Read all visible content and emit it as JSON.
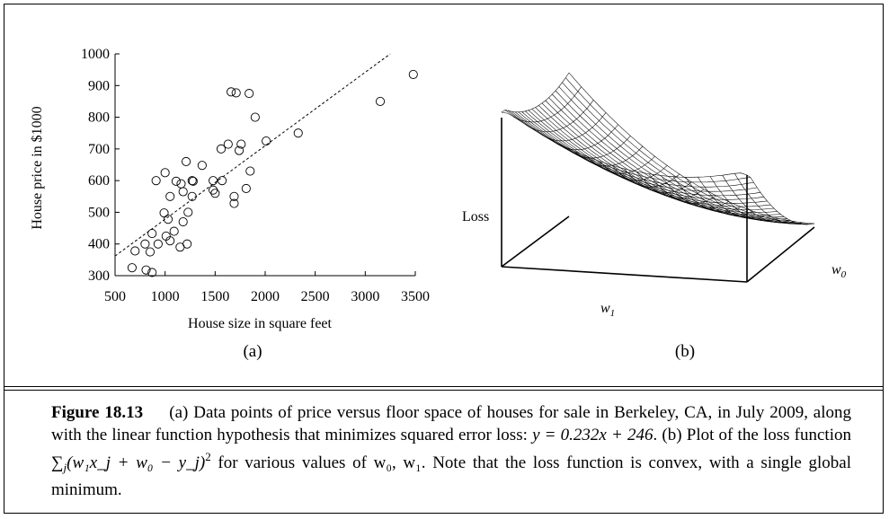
{
  "chart_data": [
    {
      "type": "scatter",
      "panel": "(a)",
      "xlabel": "House size in square feet",
      "ylabel": "House price in $1000",
      "xlim": [
        500,
        3500
      ],
      "ylim": [
        300,
        1000
      ],
      "xticks": [
        500,
        1000,
        1500,
        2000,
        2500,
        3000,
        3500
      ],
      "yticks": [
        300,
        400,
        500,
        600,
        700,
        800,
        900,
        1000
      ],
      "fit_line": {
        "slope": 0.232,
        "intercept": 246,
        "x_range": [
          500,
          3250
        ],
        "style": "dashed"
      },
      "points": [
        {
          "x": 670,
          "y": 325
        },
        {
          "x": 700,
          "y": 378
        },
        {
          "x": 810,
          "y": 318
        },
        {
          "x": 800,
          "y": 400
        },
        {
          "x": 850,
          "y": 375
        },
        {
          "x": 870,
          "y": 433
        },
        {
          "x": 870,
          "y": 310
        },
        {
          "x": 910,
          "y": 600
        },
        {
          "x": 930,
          "y": 400
        },
        {
          "x": 990,
          "y": 498
        },
        {
          "x": 1000,
          "y": 625
        },
        {
          "x": 1010,
          "y": 425
        },
        {
          "x": 1030,
          "y": 478
        },
        {
          "x": 1050,
          "y": 410
        },
        {
          "x": 1050,
          "y": 550
        },
        {
          "x": 1090,
          "y": 440
        },
        {
          "x": 1110,
          "y": 598
        },
        {
          "x": 1150,
          "y": 390
        },
        {
          "x": 1160,
          "y": 590
        },
        {
          "x": 1180,
          "y": 565
        },
        {
          "x": 1180,
          "y": 470
        },
        {
          "x": 1210,
          "y": 660
        },
        {
          "x": 1220,
          "y": 400
        },
        {
          "x": 1230,
          "y": 500
        },
        {
          "x": 1270,
          "y": 600
        },
        {
          "x": 1270,
          "y": 550
        },
        {
          "x": 1280,
          "y": 598
        },
        {
          "x": 1370,
          "y": 648
        },
        {
          "x": 1480,
          "y": 600
        },
        {
          "x": 1480,
          "y": 570
        },
        {
          "x": 1500,
          "y": 560
        },
        {
          "x": 1560,
          "y": 700
        },
        {
          "x": 1570,
          "y": 600
        },
        {
          "x": 1630,
          "y": 715
        },
        {
          "x": 1660,
          "y": 880
        },
        {
          "x": 1690,
          "y": 550
        },
        {
          "x": 1690,
          "y": 528
        },
        {
          "x": 1710,
          "y": 877
        },
        {
          "x": 1740,
          "y": 695
        },
        {
          "x": 1760,
          "y": 715
        },
        {
          "x": 1810,
          "y": 575
        },
        {
          "x": 1840,
          "y": 875
        },
        {
          "x": 1850,
          "y": 630
        },
        {
          "x": 1900,
          "y": 800
        },
        {
          "x": 2010,
          "y": 725
        },
        {
          "x": 2330,
          "y": 750
        },
        {
          "x": 3150,
          "y": 850
        },
        {
          "x": 3480,
          "y": 935
        }
      ]
    },
    {
      "type": "surface",
      "panel": "(b)",
      "zlabel": "Loss",
      "axis1_label": "w",
      "axis1_sub": "1",
      "axis2_label": "w",
      "axis2_sub": "0"
    }
  ],
  "caption": {
    "label": "Figure 18.13",
    "line1_rest": "(a) Data points of price versus floor space of houses for sale in Berkeley,",
    "line2": "CA, in July 2009, along with the linear function hypothesis that minimizes squared error",
    "line3_a": "loss: ",
    "line3_eq": "y = 0.232x + 246",
    "line3_b": ". (b) Plot of the loss function ",
    "line3_sum": "∑",
    "line3_sum_sub": "j",
    "line3_term": "(w₁x_j + w₀ − y_j)",
    "line3_sup": "2",
    "line3_c": " for various",
    "line4": "values of w₀, w₁. Note that the loss function is convex, with a single global minimum."
  }
}
